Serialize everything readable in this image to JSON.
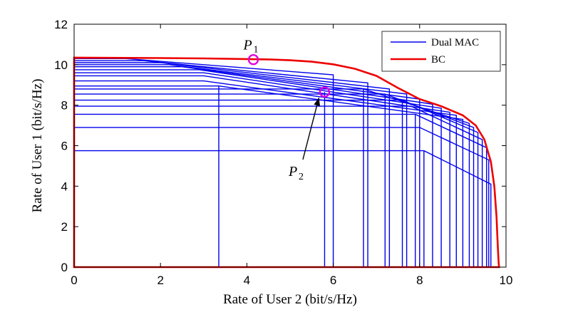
{
  "chart_data": {
    "type": "line",
    "xlabel": "Rate of User 2 (bit/s/Hz)",
    "ylabel": "Rate of User 1 (bit/s/Hz)",
    "xlim": [
      0,
      10
    ],
    "ylim": [
      0,
      12
    ],
    "xticks": [
      "0",
      "2",
      "4",
      "6",
      "8",
      "10"
    ],
    "yticks": [
      "0",
      "2",
      "4",
      "6",
      "8",
      "10",
      "12"
    ],
    "grid": false,
    "legend_position": "top-right",
    "series": [
      {
        "name": "Dual MAC",
        "color": "#0000ee",
        "regions": [
          {
            "upper_y": 5.75,
            "corner_x": 8.1,
            "end_y": 4.1,
            "max_x": 9.65
          },
          {
            "upper_y": 6.9,
            "corner_x": 8.0,
            "end_y": 5.3,
            "max_x": 9.6
          },
          {
            "upper_y": 7.55,
            "corner_x": 7.9,
            "end_y": 5.9,
            "max_x": 9.55
          },
          {
            "upper_y": 7.95,
            "corner_x": 7.8,
            "end_y": 6.3,
            "max_x": 9.45
          },
          {
            "upper_y": 8.25,
            "corner_x": 7.6,
            "end_y": 6.65,
            "max_x": 9.35
          },
          {
            "upper_y": 8.55,
            "corner_x": 7.2,
            "end_y": 6.9,
            "max_x": 9.25
          },
          {
            "upper_y": 8.8,
            "corner_x": 6.7,
            "end_y": 7.1,
            "max_x": 9.15
          },
          {
            "upper_y": 8.95,
            "corner_x": 3.35,
            "end_y": 7.3,
            "max_x": 9.0
          },
          {
            "upper_y": 9.2,
            "corner_x": 3.0,
            "end_y": 7.5,
            "max_x": 8.85
          },
          {
            "upper_y": 9.45,
            "corner_x": 3.0,
            "end_y": 7.65,
            "max_x": 8.7
          },
          {
            "upper_y": 9.6,
            "corner_x": 3.0,
            "end_y": 7.85,
            "max_x": 8.5
          },
          {
            "upper_y": 9.75,
            "corner_x": 2.9,
            "end_y": 8.05,
            "max_x": 8.3
          },
          {
            "upper_y": 9.9,
            "corner_x": 2.5,
            "end_y": 8.3,
            "max_x": 8.0
          },
          {
            "upper_y": 10.0,
            "corner_x": 2.2,
            "end_y": 8.55,
            "max_x": 7.7
          },
          {
            "upper_y": 10.1,
            "corner_x": 2.0,
            "end_y": 8.8,
            "max_x": 7.3
          },
          {
            "upper_y": 10.2,
            "corner_x": 1.6,
            "end_y": 9.1,
            "max_x": 6.8
          },
          {
            "upper_y": 10.3,
            "corner_x": 1.2,
            "end_y": 9.5,
            "max_x": 6.0
          }
        ],
        "vertical_lines_x": [
          3.35,
          5.8,
          6.7,
          7.2,
          7.6,
          7.9,
          8.1
        ]
      },
      {
        "name": "BC",
        "color": "#ee0000",
        "x": [
          0,
          2.0,
          3.0,
          4.0,
          4.5,
          5.0,
          5.5,
          6.0,
          6.5,
          7.0,
          7.5,
          8.0,
          8.5,
          9.0,
          9.3,
          9.5,
          9.65,
          9.73,
          9.78,
          9.8,
          9.82,
          9.83,
          9.84,
          0
        ],
        "y": [
          10.35,
          10.33,
          10.31,
          10.28,
          10.26,
          10.22,
          10.15,
          10.02,
          9.8,
          9.45,
          8.85,
          8.3,
          7.95,
          7.5,
          7.0,
          6.3,
          5.2,
          4.0,
          2.5,
          1.5,
          0.6,
          0.2,
          0,
          0
        ]
      }
    ],
    "annotations": [
      {
        "label": "P",
        "subscript": "1",
        "marker_x": 4.15,
        "marker_y": 10.25,
        "marker_color": "#e000e0"
      },
      {
        "label": "P",
        "subscript": "2",
        "marker_x": 5.8,
        "marker_y": 8.65,
        "marker_color": "#e000e0",
        "arrow": true
      }
    ]
  }
}
